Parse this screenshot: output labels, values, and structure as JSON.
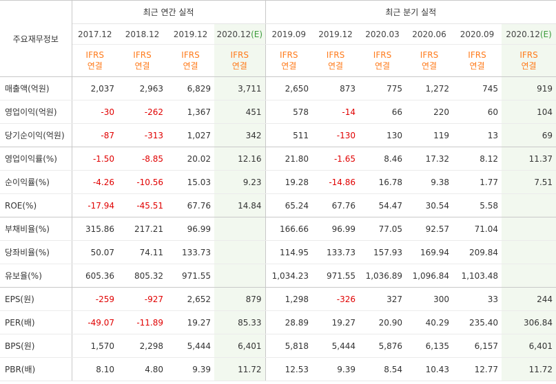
{
  "corner_label": "주요재무정보",
  "annual_group": "최근 연간 실적",
  "quarter_group": "최근 분기 실적",
  "basis_top": "IFRS",
  "basis_bottom": "연결",
  "estimate_mark": "(E)",
  "periods": [
    {
      "label": "2017.12",
      "est": false
    },
    {
      "label": "2018.12",
      "est": false
    },
    {
      "label": "2019.12",
      "est": false
    },
    {
      "label": "2020.12",
      "est": true
    },
    {
      "label": "2019.09",
      "est": false
    },
    {
      "label": "2019.12",
      "est": false
    },
    {
      "label": "2020.03",
      "est": false
    },
    {
      "label": "2020.06",
      "est": false
    },
    {
      "label": "2020.09",
      "est": false
    },
    {
      "label": "2020.12",
      "est": true
    }
  ],
  "rows": [
    {
      "label": "매출액(억원)",
      "values": [
        "2,037",
        "2,963",
        "6,829",
        "3,711",
        "2,650",
        "873",
        "775",
        "1,272",
        "745",
        "919"
      ]
    },
    {
      "label": "영업이익(억원)",
      "values": [
        "-30",
        "-262",
        "1,367",
        "451",
        "578",
        "-14",
        "66",
        "220",
        "60",
        "104"
      ]
    },
    {
      "label": "당기순이익(억원)",
      "values": [
        "-87",
        "-313",
        "1,027",
        "342",
        "511",
        "-130",
        "130",
        "119",
        "13",
        "69"
      ]
    },
    {
      "label": "영업이익률(%)",
      "values": [
        "-1.50",
        "-8.85",
        "20.02",
        "12.16",
        "21.80",
        "-1.65",
        "8.46",
        "17.32",
        "8.12",
        "11.37"
      ]
    },
    {
      "label": "순이익률(%)",
      "values": [
        "-4.26",
        "-10.56",
        "15.03",
        "9.23",
        "19.28",
        "-14.86",
        "16.78",
        "9.38",
        "1.77",
        "7.51"
      ]
    },
    {
      "label": "ROE(%)",
      "values": [
        "-17.94",
        "-45.51",
        "67.76",
        "14.84",
        "65.24",
        "67.76",
        "54.47",
        "30.54",
        "5.58",
        ""
      ]
    },
    {
      "label": "부채비율(%)",
      "values": [
        "315.86",
        "217.21",
        "96.99",
        "",
        "166.66",
        "96.99",
        "77.05",
        "92.57",
        "71.04",
        ""
      ]
    },
    {
      "label": "당좌비율(%)",
      "values": [
        "50.07",
        "74.11",
        "133.73",
        "",
        "114.95",
        "133.73",
        "157.93",
        "169.94",
        "209.84",
        ""
      ]
    },
    {
      "label": "유보율(%)",
      "values": [
        "605.36",
        "805.32",
        "971.55",
        "",
        "1,034.23",
        "971.55",
        "1,036.89",
        "1,096.84",
        "1,103.48",
        ""
      ]
    },
    {
      "label": "EPS(원)",
      "values": [
        "-259",
        "-927",
        "2,652",
        "879",
        "1,298",
        "-326",
        "327",
        "300",
        "33",
        "244"
      ]
    },
    {
      "label": "PER(배)",
      "values": [
        "-49.07",
        "-11.89",
        "19.27",
        "85.33",
        "28.89",
        "19.27",
        "20.90",
        "40.29",
        "235.40",
        "306.84"
      ]
    },
    {
      "label": "BPS(원)",
      "values": [
        "1,570",
        "2,298",
        "5,444",
        "6,401",
        "5,818",
        "5,444",
        "5,876",
        "6,135",
        "6,157",
        "6,401"
      ]
    },
    {
      "label": "PBR(배)",
      "values": [
        "8.10",
        "4.80",
        "9.39",
        "11.72",
        "12.53",
        "9.39",
        "8.54",
        "10.43",
        "12.77",
        "11.72"
      ]
    }
  ]
}
